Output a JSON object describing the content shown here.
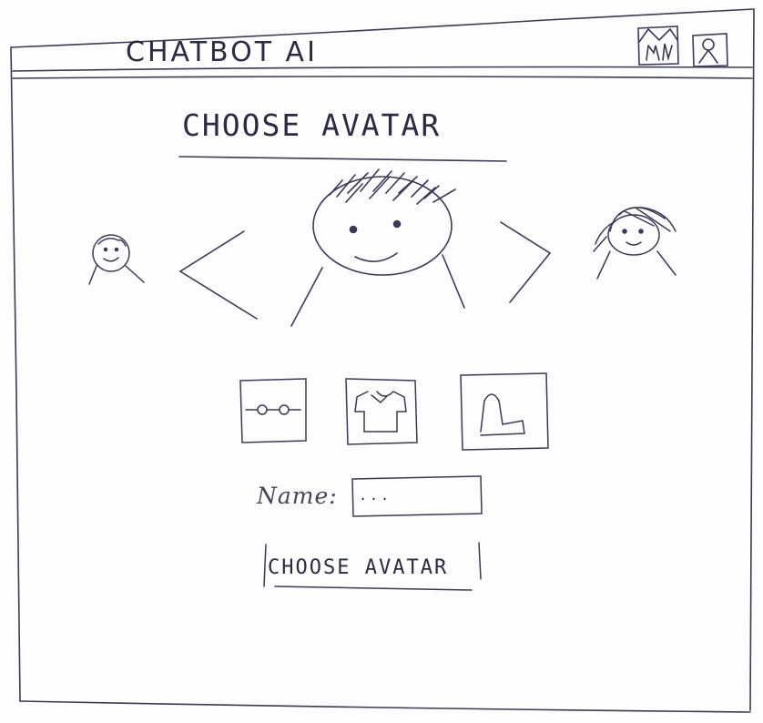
{
  "window": {
    "title": "CHATBOT AI"
  },
  "header": {
    "icons": [
      {
        "name": "home-icon"
      },
      {
        "name": "user-profile-icon"
      }
    ]
  },
  "main": {
    "heading": "CHOOSE AVATAR",
    "carousel": {
      "avatars": [
        {
          "name": "avatar-option-left",
          "state": "side"
        },
        {
          "name": "avatar-option-center",
          "state": "selected"
        },
        {
          "name": "avatar-option-right",
          "state": "side"
        }
      ],
      "prev_icon": "chevron-left-icon",
      "next_icon": "chevron-right-icon"
    },
    "accessories": [
      {
        "name": "glasses-accessory",
        "icon": "glasses-icon"
      },
      {
        "name": "shirt-accessory",
        "icon": "shirt-icon"
      },
      {
        "name": "hat-accessory",
        "icon": "hat-icon"
      }
    ],
    "name_field": {
      "label": "Name:",
      "placeholder": "...",
      "value": ""
    },
    "submit_label": "CHOOSE AVATAR"
  },
  "colors": {
    "ink": "#2b2b45",
    "paper": "#fdfdfd"
  }
}
